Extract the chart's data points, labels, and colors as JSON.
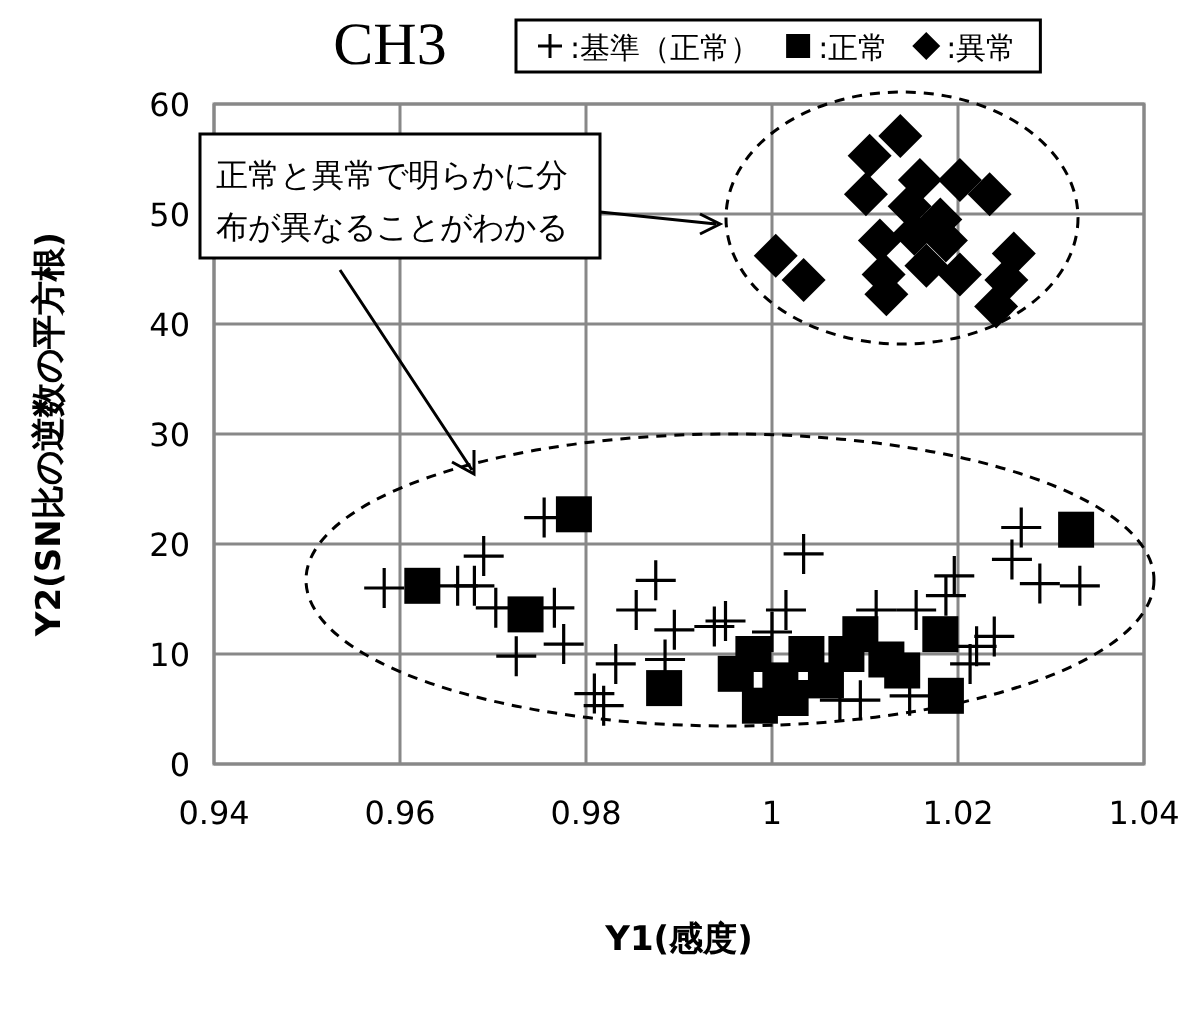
{
  "chart_data": {
    "type": "scatter",
    "title": "CH3",
    "xlabel": "Y1(感度)",
    "ylabel": "Y2(SN比の逆数の平方根)",
    "xlim": [
      0.94,
      1.04
    ],
    "xticks": [
      0.94,
      0.96,
      0.98,
      1,
      1.02,
      1.04
    ],
    "ylim": [
      0,
      60
    ],
    "yticks": [
      0,
      10,
      20,
      30,
      40,
      50,
      60
    ],
    "grid": true,
    "legend": "top",
    "annotations": [
      "正常と異常で明らかに分布が異なることがわかる"
    ],
    "series": [
      {
        "name": ":基準（正常）",
        "color": "#000000",
        "marker": "cross",
        "x": [
          0.9583,
          0.969,
          0.968,
          0.9766,
          0.9776,
          0.9725,
          0.9875,
          0.9854,
          0.9895,
          0.9938,
          0.9832,
          0.9819,
          0.9809,
          0.9703,
          0.9662,
          0.9755,
          1.0034,
          1.0015,
          1.0268,
          1.0258,
          1.0288,
          1.0331,
          1.0196,
          1.0187,
          1.0155,
          1.0239,
          1.022,
          1.0213,
          1.0095,
          1.0148,
          1.0073,
          1.0112,
          0.9885,
          0.995,
          1.0
        ],
        "values": [
          16,
          18.9,
          16.2,
          14.2,
          10.9,
          9.8,
          16.7,
          14,
          12.2,
          12.5,
          9.1,
          5.3,
          6.4,
          14.2,
          16.2,
          22.4,
          19.1,
          14,
          21.5,
          18.6,
          16.4,
          16.2,
          17.1,
          15.3,
          14,
          11.6,
          10.7,
          9.1,
          5.8,
          6.2,
          5.8,
          14,
          9.5,
          13,
          12
        ]
      },
      {
        "name": ":正常",
        "color": "#000000",
        "marker": "square",
        "x": [
          0.9787,
          0.9624,
          0.9735,
          0.9884,
          0.9961,
          1.0327,
          1.0187,
          1.0181,
          1.0095,
          0.998,
          0.9987,
          1.0123,
          1.0037,
          1.0058,
          1.0009,
          1.002,
          1.008,
          1.014
        ],
        "values": [
          22.7,
          16.2,
          13.6,
          6.9,
          8.2,
          21.3,
          6.2,
          11.8,
          11.8,
          10,
          5.3,
          9.5,
          10,
          7.6,
          7.6,
          6,
          10,
          8.5
        ]
      },
      {
        "name": ":異常",
        "color": "#000000",
        "marker": "diamond",
        "x": [
          1.0004,
          1.0034,
          1.0138,
          1.0105,
          1.0101,
          1.0159,
          1.0202,
          1.0234,
          1.0148,
          1.0181,
          1.0116,
          1.0166,
          1.0202,
          1.012,
          1.0123,
          1.026,
          1.0252,
          1.0241,
          1.0187,
          1.0153
        ],
        "values": [
          46.2,
          44,
          57.1,
          55.3,
          51.8,
          53.1,
          53.1,
          51.8,
          50.7,
          49.5,
          47.6,
          45.3,
          44.5,
          44.5,
          42.7,
          46.4,
          44,
          41.6,
          47.6,
          48.2
        ]
      }
    ]
  }
}
